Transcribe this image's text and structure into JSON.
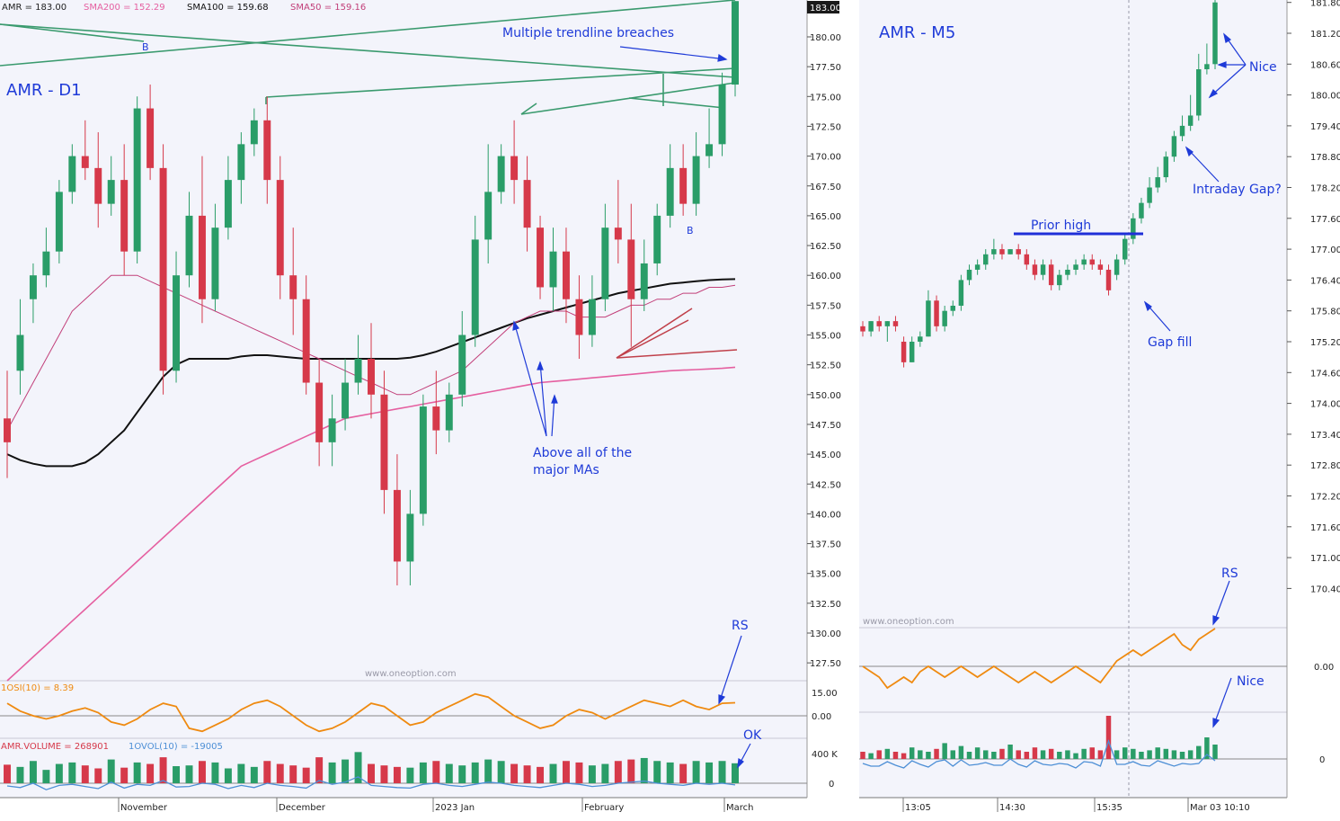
{
  "colors": {
    "bg": "#f3f4fb",
    "up": "#2a9d68",
    "down": "#d6394a",
    "sma50": "#c2407a",
    "sma100": "#111111",
    "sma200": "#e55fa0",
    "rs": "#ef8a10",
    "ovol": "#4d8fd6",
    "trend": "#3a9a6e",
    "wedge": "#c0404a",
    "annotation": "#1f3bd8",
    "axis": "#555555"
  },
  "chart_data": [
    {
      "type": "candlestick",
      "title": "AMR - D1",
      "header": {
        "price_label": "AMR = 183.00",
        "sma200_label": "SMA200 = 152.29",
        "sma100_label": "SMA100 = 159.68",
        "sma50_label": "SMA50 = 159.16"
      },
      "last_price_tag": "183.00",
      "ylim": [
        130,
        183
      ],
      "y_ticks": [
        "180.00",
        "177.50",
        "175.00",
        "172.50",
        "170.00",
        "167.50",
        "165.00",
        "162.50",
        "160.00",
        "157.50",
        "155.00",
        "152.50",
        "150.00",
        "147.50",
        "145.00",
        "142.50",
        "140.00",
        "137.50",
        "135.00",
        "132.50",
        "130.00",
        "127.50"
      ],
      "x_ticks": [
        "November",
        "December",
        "2023 Jan",
        "February",
        "March"
      ],
      "candles": [
        [
          148,
          152,
          146,
          143
        ],
        [
          152,
          158,
          155,
          150
        ],
        [
          158,
          161,
          160,
          156
        ],
        [
          160,
          164,
          162,
          159
        ],
        [
          162,
          168,
          167,
          161
        ],
        [
          167,
          171,
          170,
          166
        ],
        [
          170,
          173,
          169,
          168
        ],
        [
          169,
          172,
          166,
          164
        ],
        [
          166,
          170,
          168,
          165
        ],
        [
          168,
          171,
          162,
          160
        ],
        [
          162,
          175,
          174,
          161
        ],
        [
          174,
          176,
          169,
          168
        ],
        [
          169,
          171,
          152,
          150
        ],
        [
          152,
          162,
          160,
          151
        ],
        [
          160,
          167,
          165,
          159
        ],
        [
          165,
          170,
          158,
          156
        ],
        [
          158,
          166,
          164,
          157
        ],
        [
          164,
          170,
          168,
          163
        ],
        [
          168,
          172,
          171,
          166
        ],
        [
          171,
          174,
          173,
          170
        ],
        [
          173,
          175,
          168,
          166
        ],
        [
          168,
          170,
          160,
          158
        ],
        [
          160,
          164,
          158,
          155
        ],
        [
          158,
          160,
          151,
          150
        ],
        [
          151,
          153,
          146,
          144
        ],
        [
          146,
          150,
          148,
          144
        ],
        [
          148,
          153,
          151,
          147
        ],
        [
          151,
          155,
          153,
          150
        ],
        [
          153,
          156,
          150,
          148
        ],
        [
          150,
          152,
          142,
          140
        ],
        [
          142,
          145,
          136,
          134
        ],
        [
          136,
          142,
          140,
          134
        ],
        [
          140,
          150,
          149,
          139
        ],
        [
          149,
          152,
          147,
          145
        ],
        [
          147,
          151,
          150,
          146
        ],
        [
          150,
          157,
          155,
          149
        ],
        [
          155,
          165,
          163,
          154
        ],
        [
          163,
          171,
          167,
          161
        ],
        [
          167,
          171,
          170,
          166
        ],
        [
          170,
          173,
          168,
          166
        ],
        [
          168,
          170,
          164,
          162
        ],
        [
          164,
          165,
          159,
          158
        ],
        [
          159,
          164,
          162,
          157
        ],
        [
          162,
          164,
          158,
          156
        ],
        [
          158,
          160,
          155,
          153
        ],
        [
          155,
          160,
          158,
          154
        ],
        [
          158,
          166,
          164,
          157
        ],
        [
          164,
          168,
          163,
          161
        ],
        [
          163,
          166,
          158,
          154
        ],
        [
          158,
          163,
          161,
          157
        ],
        [
          161,
          166,
          165,
          160
        ],
        [
          165,
          171,
          169,
          164
        ],
        [
          169,
          171,
          166,
          165
        ],
        [
          166,
          172,
          170,
          165
        ],
        [
          170,
          174,
          171,
          169
        ],
        [
          171,
          177,
          176,
          170
        ],
        [
          176,
          183,
          183,
          175
        ]
      ],
      "sma50": [
        147,
        149,
        151,
        153,
        155,
        157,
        158,
        159,
        160,
        160,
        160,
        159.5,
        159,
        158.5,
        158,
        157.5,
        157,
        156.5,
        156,
        155.5,
        155,
        154.5,
        154,
        153.5,
        153,
        152.5,
        152,
        151.5,
        151,
        150.5,
        150,
        150,
        150.5,
        151,
        151.5,
        152,
        153,
        154,
        155,
        156,
        156.5,
        157,
        157,
        157,
        156.5,
        156.5,
        156.5,
        157,
        157.5,
        157.5,
        158,
        158,
        158.5,
        158.5,
        159,
        159,
        159.16
      ],
      "sma100": [
        145,
        144.5,
        144.2,
        144,
        144,
        144,
        144.3,
        145,
        146,
        147,
        148.5,
        150,
        151.5,
        152.5,
        153,
        153,
        153,
        153,
        153.2,
        153.3,
        153.3,
        153.2,
        153.1,
        153,
        153,
        153,
        153,
        153,
        153,
        153,
        153,
        153.1,
        153.3,
        153.6,
        154,
        154.4,
        154.8,
        155.2,
        155.6,
        156,
        156.4,
        156.7,
        157,
        157.3,
        157.6,
        157.9,
        158.2,
        158.5,
        158.7,
        158.9,
        159.1,
        159.3,
        159.4,
        159.5,
        159.6,
        159.65,
        159.68
      ],
      "sma200": [
        126,
        127,
        128,
        129,
        130,
        131,
        132,
        133,
        134,
        135,
        136,
        137,
        138,
        139,
        140,
        141,
        142,
        143,
        144,
        144.5,
        145,
        145.5,
        146,
        146.5,
        147,
        147.5,
        148,
        148.2,
        148.4,
        148.6,
        148.8,
        149,
        149.2,
        149.4,
        149.6,
        149.8,
        150,
        150.2,
        150.4,
        150.6,
        150.8,
        151,
        151.1,
        151.2,
        151.3,
        151.4,
        151.5,
        151.6,
        151.7,
        151.8,
        151.9,
        152,
        152.05,
        152.1,
        152.15,
        152.2,
        152.29
      ],
      "rs_label": "1OSI(10) = 8.39",
      "rs_ticks": [
        "15.00",
        "0.00"
      ],
      "rs": [
        8,
        3,
        0,
        -2,
        0,
        3,
        5,
        2,
        -4,
        -6,
        -2,
        4,
        8,
        6,
        -8,
        -10,
        -6,
        -2,
        4,
        8,
        10,
        6,
        0,
        -6,
        -10,
        -8,
        -4,
        2,
        8,
        6,
        0,
        -6,
        -4,
        2,
        6,
        10,
        14,
        12,
        6,
        0,
        -4,
        -8,
        -6,
        0,
        4,
        2,
        -2,
        2,
        6,
        10,
        8,
        6,
        10,
        6,
        4,
        8,
        8.39
      ],
      "volume_label": "AMR.VOLUME = 268901",
      "ovol_label": "1OVOL(10) = -19005",
      "vol_ticks": [
        "400 K",
        "0"
      ],
      "volume": [
        250,
        220,
        300,
        180,
        260,
        280,
        240,
        200,
        320,
        210,
        280,
        260,
        350,
        230,
        240,
        300,
        280,
        200,
        260,
        220,
        300,
        260,
        240,
        210,
        350,
        280,
        320,
        420,
        260,
        240,
        220,
        210,
        280,
        300,
        260,
        240,
        280,
        320,
        300,
        260,
        240,
        220,
        260,
        300,
        280,
        240,
        260,
        300,
        320,
        340,
        300,
        280,
        260,
        300,
        280,
        300,
        268.9
      ],
      "annotations": {
        "trendline": "Multiple trendline breaches",
        "mas_line1": "Above all of the",
        "mas_line2": "major MAs",
        "rs": "RS",
        "ok": "OK",
        "marker_b1": "B",
        "marker_b2": "B"
      },
      "watermark": "www.oneoption.com"
    },
    {
      "type": "candlestick",
      "title": "AMR - M5",
      "ylim": [
        169.9,
        181.9
      ],
      "y_ticks": [
        "181.80",
        "181.20",
        "180.60",
        "180.00",
        "179.40",
        "178.80",
        "178.20",
        "177.60",
        "177.00",
        "176.40",
        "175.80",
        "175.20",
        "174.60",
        "174.00",
        "173.40",
        "172.80",
        "172.20",
        "171.60",
        "171.00",
        "170.40"
      ],
      "x_ticks": [
        "13:05",
        "14:30",
        "15:35",
        "Mar 03 10:10"
      ],
      "candles": [
        [
          175.5,
          175.6,
          175.4,
          175.3
        ],
        [
          175.4,
          175.6,
          175.6,
          175.3
        ],
        [
          175.6,
          175.7,
          175.5,
          175.4
        ],
        [
          175.5,
          175.6,
          175.6,
          175.2
        ],
        [
          175.6,
          175.7,
          175.5,
          175.4
        ],
        [
          175.2,
          175.3,
          174.8,
          174.7
        ],
        [
          174.8,
          175.3,
          175.2,
          174.8
        ],
        [
          175.2,
          175.4,
          175.3,
          175.1
        ],
        [
          175.3,
          176.2,
          176.0,
          175.3
        ],
        [
          176.0,
          176.1,
          175.5,
          175.4
        ],
        [
          175.5,
          175.9,
          175.8,
          175.4
        ],
        [
          175.8,
          176.0,
          175.9,
          175.7
        ],
        [
          175.9,
          176.5,
          176.4,
          175.8
        ],
        [
          176.4,
          176.7,
          176.6,
          176.3
        ],
        [
          176.6,
          176.8,
          176.7,
          176.5
        ],
        [
          176.7,
          177.0,
          176.9,
          176.6
        ],
        [
          176.9,
          177.2,
          177.0,
          176.8
        ],
        [
          177.0,
          177.1,
          176.9,
          176.8
        ],
        [
          176.9,
          177.0,
          177.0,
          176.9
        ],
        [
          177.0,
          177.1,
          176.9,
          176.8
        ],
        [
          176.9,
          177.0,
          176.7,
          176.6
        ],
        [
          176.7,
          176.8,
          176.5,
          176.4
        ],
        [
          176.5,
          176.8,
          176.7,
          176.4
        ],
        [
          176.7,
          176.8,
          176.3,
          176.2
        ],
        [
          176.3,
          176.6,
          176.5,
          176.2
        ],
        [
          176.5,
          176.7,
          176.6,
          176.4
        ],
        [
          176.6,
          176.8,
          176.7,
          176.5
        ],
        [
          176.7,
          176.9,
          176.8,
          176.6
        ],
        [
          176.8,
          176.9,
          176.7,
          176.6
        ],
        [
          176.7,
          176.8,
          176.6,
          176.5
        ],
        [
          176.6,
          176.7,
          176.2,
          176.1
        ],
        [
          176.5,
          176.9,
          176.8,
          176.4
        ],
        [
          176.8,
          177.3,
          177.2,
          176.7
        ],
        [
          177.2,
          177.7,
          177.6,
          177.1
        ],
        [
          177.6,
          178.0,
          177.9,
          177.5
        ],
        [
          177.9,
          178.4,
          178.2,
          177.8
        ],
        [
          178.2,
          178.6,
          178.4,
          178.1
        ],
        [
          178.4,
          178.9,
          178.8,
          178.3
        ],
        [
          178.8,
          179.3,
          179.2,
          178.7
        ],
        [
          179.2,
          179.6,
          179.4,
          179.1
        ],
        [
          179.4,
          180.0,
          179.6,
          179.3
        ],
        [
          179.6,
          180.8,
          180.5,
          179.5
        ],
        [
          180.5,
          181.0,
          180.6,
          180.4
        ],
        [
          180.6,
          181.9,
          181.8,
          180.5
        ]
      ],
      "annotations": {
        "prior_high": "Prior high",
        "gap_fill": "Gap fill",
        "intraday_gap": "Intraday Gap?",
        "nice": "Nice",
        "rs": "RS",
        "nice2": "Nice"
      },
      "rs_ticks": [
        "0.00"
      ],
      "rs": [
        0,
        -2,
        -4,
        -8,
        -6,
        -4,
        -6,
        -2,
        0,
        -2,
        -4,
        -2,
        0,
        -2,
        -4,
        -2,
        0,
        -2,
        -4,
        -6,
        -4,
        -2,
        -4,
        -6,
        -4,
        -2,
        0,
        -2,
        -4,
        -6,
        -2,
        2,
        4,
        6,
        4,
        6,
        8,
        10,
        12,
        8,
        6,
        10,
        12,
        14
      ],
      "vol_ticks": [
        "0"
      ],
      "volume": [
        10,
        8,
        12,
        14,
        10,
        8,
        16,
        12,
        10,
        14,
        22,
        12,
        18,
        10,
        16,
        12,
        10,
        14,
        20,
        12,
        10,
        16,
        12,
        14,
        10,
        12,
        8,
        14,
        16,
        12,
        60,
        12,
        16,
        14,
        10,
        12,
        16,
        14,
        12,
        10,
        12,
        18,
        30,
        20
      ],
      "watermark": "www.oneoption.com"
    }
  ]
}
